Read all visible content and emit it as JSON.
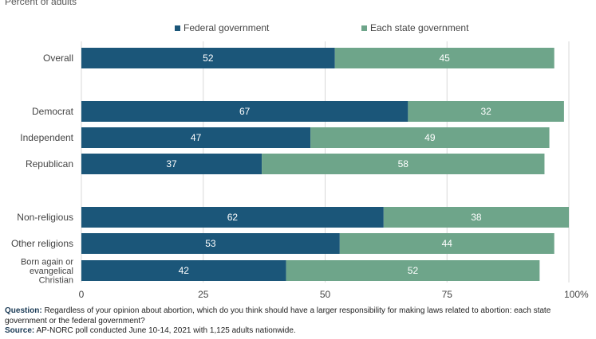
{
  "subtitle": "Percent of adults",
  "colors": {
    "federal": "#1b5679",
    "state": "#6ea58a",
    "grid": "#d8d8d8"
  },
  "chart_data": {
    "type": "bar",
    "orientation": "horizontal",
    "stacked": true,
    "categories": [
      "Overall",
      "Democrat",
      "Independent",
      "Republican",
      "Non-religious",
      "Other religions",
      "Born again or evangelical Christian"
    ],
    "series": [
      {
        "name": "Federal government",
        "values": [
          52,
          67,
          47,
          37,
          62,
          53,
          42
        ]
      },
      {
        "name": "Each state government",
        "values": [
          45,
          32,
          49,
          58,
          38,
          44,
          52
        ]
      }
    ],
    "xlim": [
      0,
      100
    ],
    "xticks": [
      "0",
      "25",
      "50",
      "75",
      "100%"
    ],
    "grid": true,
    "legend": "top"
  },
  "footnote": {
    "question_label": "Question:",
    "question_text": "Regardless of your opinion about abortion, which do you think should have a larger responsibility for making laws related to abortion: each state government or the federal government?",
    "source_label": "Source:",
    "source_text": "AP-NORC poll conducted June 10-14, 2021 with 1,125 adults nationwide."
  }
}
